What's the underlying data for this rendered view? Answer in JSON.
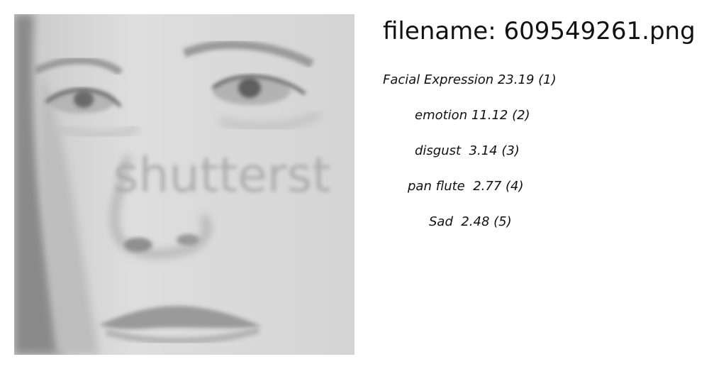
{
  "image": {
    "watermark_text": "shutterst",
    "subject": "grayscale close-up of a woman's face"
  },
  "header": {
    "filename": "filename: 609549261.png"
  },
  "predictions": [
    {
      "text": "Facial Expression 23.19 (1)"
    },
    {
      "text": "emotion 11.12 (2)"
    },
    {
      "text": "disgust  3.14 (3)"
    },
    {
      "text": "pan flute  2.77 (4)"
    },
    {
      "text": "Sad  2.48 (5)"
    }
  ]
}
